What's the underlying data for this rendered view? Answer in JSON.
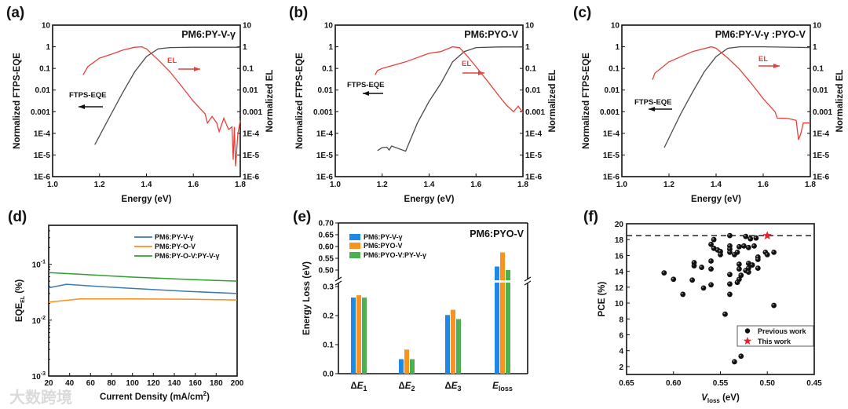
{
  "watermark": "大数跨境",
  "colors": {
    "el": "#e8413c",
    "ftps": "#4a4a4a",
    "d_blue": "#3a7ab3",
    "d_orange": "#ff8c1a",
    "d_green": "#2ca02c",
    "e_blue": "#1e88e5",
    "e_orange": "#f7931e",
    "e_green": "#4caf50",
    "star": "#e8202a"
  },
  "chart_data": [
    {
      "panel": "(a)",
      "type": "line",
      "title": "PM6:PY-V-γ",
      "xlabel": "Energy (eV)",
      "ylabel": "Normalized FTPS-EQE",
      "ylabel_right": "Normalized EL",
      "xlim": [
        1.0,
        1.8
      ],
      "ylim": [
        1e-06,
        10
      ],
      "yscale": "log",
      "xticks": [
        "1.0",
        "1.2",
        "1.4",
        "1.6",
        "1.8"
      ],
      "yticks": [
        "10",
        "1",
        "0.1",
        "0.01",
        "0.001",
        "1E-4",
        "1E-5",
        "1E-6"
      ],
      "annotations": {
        "el": "EL",
        "ftps": "FTPS-EQE"
      },
      "series": [
        {
          "name": "FTPS-EQE",
          "points": [
            [
              1.18,
              3e-05
            ],
            [
              1.25,
              0.0008
            ],
            [
              1.3,
              0.008
            ],
            [
              1.35,
              0.07
            ],
            [
              1.4,
              0.35
            ],
            [
              1.45,
              0.8
            ],
            [
              1.5,
              0.92
            ],
            [
              1.6,
              0.95
            ],
            [
              1.8,
              0.95
            ]
          ]
        },
        {
          "name": "EL",
          "points": [
            [
              1.13,
              0.05
            ],
            [
              1.15,
              0.12
            ],
            [
              1.2,
              0.3
            ],
            [
              1.25,
              0.45
            ],
            [
              1.3,
              0.7
            ],
            [
              1.35,
              0.95
            ],
            [
              1.38,
              1.0
            ],
            [
              1.4,
              0.8
            ],
            [
              1.45,
              0.25
            ],
            [
              1.5,
              0.07
            ],
            [
              1.55,
              0.015
            ],
            [
              1.6,
              0.003
            ],
            [
              1.65,
              0.0008
            ],
            [
              1.66,
              0.0003
            ],
            [
              1.68,
              0.0006
            ],
            [
              1.7,
              0.0003
            ],
            [
              1.71,
              0.00012
            ],
            [
              1.73,
              0.0005
            ],
            [
              1.75,
              0.00015
            ],
            [
              1.765,
              0.0002
            ],
            [
              1.77,
              6e-06
            ],
            [
              1.775,
              0.0002
            ],
            [
              1.78,
              3e-06
            ],
            [
              1.79,
              0.0001
            ],
            [
              1.8,
              0.0004
            ]
          ]
        }
      ]
    },
    {
      "panel": "(b)",
      "type": "line",
      "title": "PM6:PYO-V",
      "xlabel": "Energy (eV)",
      "ylabel": "Normalized FTPS-EQE",
      "ylabel_right": "Normalized EL",
      "xlim": [
        1.0,
        1.8
      ],
      "ylim": [
        1e-06,
        10
      ],
      "yscale": "log",
      "xticks": [
        "1.0",
        "1.2",
        "1.4",
        "1.6",
        "1.8"
      ],
      "yticks": [
        "10",
        "1",
        "0.1",
        "0.01",
        "0.001",
        "1E-4",
        "1E-5",
        "1E-6"
      ],
      "annotations": {
        "el": "EL",
        "ftps": "FTPS-EQE"
      },
      "series": [
        {
          "name": "FTPS-EQE",
          "points": [
            [
              1.18,
              1.6e-05
            ],
            [
              1.2,
              2.2e-05
            ],
            [
              1.22,
              2.3e-05
            ],
            [
              1.23,
              1.7e-05
            ],
            [
              1.24,
              2.6e-05
            ],
            [
              1.3,
              1.5e-05
            ],
            [
              1.35,
              0.0003
            ],
            [
              1.4,
              0.003
            ],
            [
              1.45,
              0.02
            ],
            [
              1.5,
              0.2
            ],
            [
              1.55,
              0.6
            ],
            [
              1.6,
              0.92
            ],
            [
              1.7,
              0.98
            ],
            [
              1.8,
              0.98
            ]
          ]
        },
        {
          "name": "EL",
          "points": [
            [
              1.17,
              0.05
            ],
            [
              1.18,
              0.08
            ],
            [
              1.2,
              0.1
            ],
            [
              1.3,
              0.2
            ],
            [
              1.4,
              0.5
            ],
            [
              1.45,
              0.6
            ],
            [
              1.5,
              1.0
            ],
            [
              1.53,
              0.9
            ],
            [
              1.56,
              0.4
            ],
            [
              1.6,
              0.12
            ],
            [
              1.65,
              0.025
            ],
            [
              1.7,
              0.005
            ],
            [
              1.73,
              0.002
            ],
            [
              1.76,
              0.001
            ],
            [
              1.78,
              0.0018
            ],
            [
              1.8,
              0.0009
            ]
          ]
        }
      ]
    },
    {
      "panel": "(c)",
      "type": "line",
      "title": "PM6:PY-V-γ :PYO-V",
      "xlabel": "Energy (eV)",
      "ylabel": "Normalized FTPS-EQE",
      "ylabel_right": "Normalized EL",
      "xlim": [
        1.0,
        1.8
      ],
      "ylim": [
        1e-06,
        10
      ],
      "yscale": "log",
      "xticks": [
        "1.0",
        "1.2",
        "1.4",
        "1.6",
        "1.8"
      ],
      "yticks": [
        "10",
        "1",
        "0.1",
        "0.01",
        "0.001",
        "1E-4",
        "1E-5",
        "1E-6"
      ],
      "annotations": {
        "el": "EL",
        "ftps": "FTPS-EQE"
      },
      "series": [
        {
          "name": "FTPS-EQE",
          "points": [
            [
              1.18,
              2.2e-05
            ],
            [
              1.25,
              0.0008
            ],
            [
              1.3,
              0.008
            ],
            [
              1.35,
              0.07
            ],
            [
              1.4,
              0.35
            ],
            [
              1.45,
              0.85
            ],
            [
              1.5,
              1.0
            ],
            [
              1.6,
              1.0
            ],
            [
              1.8,
              0.92
            ]
          ]
        },
        {
          "name": "EL",
          "points": [
            [
              1.13,
              0.03
            ],
            [
              1.14,
              0.06
            ],
            [
              1.2,
              0.2
            ],
            [
              1.3,
              0.6
            ],
            [
              1.38,
              1.0
            ],
            [
              1.4,
              0.85
            ],
            [
              1.45,
              0.3
            ],
            [
              1.5,
              0.09
            ],
            [
              1.55,
              0.02
            ],
            [
              1.6,
              0.004
            ],
            [
              1.65,
              0.001
            ],
            [
              1.66,
              0.0005
            ],
            [
              1.7,
              0.0005
            ],
            [
              1.74,
              0.0004
            ],
            [
              1.75,
              5e-05
            ],
            [
              1.76,
              0.0001
            ],
            [
              1.77,
              0.0003
            ],
            [
              1.8,
              0.0003
            ]
          ]
        }
      ]
    },
    {
      "panel": "(d)",
      "type": "line",
      "xlabel": "Current Density (mA/cm",
      "xlabel_sup": "2",
      "xlabel_end": ")",
      "ylabel": "EQE",
      "ylabel_sub": "EL",
      "ylabel_end": " (%)",
      "xlim": [
        20,
        200
      ],
      "ylim": [
        0.001,
        0.5
      ],
      "yscale": "log",
      "xticks": [
        "20",
        "40",
        "60",
        "80",
        "100",
        "120",
        "140",
        "160",
        "180",
        "200"
      ],
      "yticks": [
        {
          "base": "10",
          "exp": "-1"
        },
        {
          "base": "10",
          "exp": "-2"
        },
        {
          "base": "10",
          "exp": "-3"
        }
      ],
      "legend_position": "top-right",
      "series": [
        {
          "name": "PM6:PY-V-γ",
          "points": [
            [
              20,
              0.038
            ],
            [
              37,
              0.044
            ],
            [
              60,
              0.041
            ],
            [
              100,
              0.037
            ],
            [
              150,
              0.033
            ],
            [
              200,
              0.03
            ]
          ]
        },
        {
          "name": "PM6:PY-O-V",
          "points": [
            [
              20,
              0.021
            ],
            [
              50,
              0.024
            ],
            [
              100,
              0.024
            ],
            [
              150,
              0.0238
            ],
            [
              200,
              0.023
            ]
          ]
        },
        {
          "name": "PM6:PY-O-V:PY-V-γ",
          "points": [
            [
              20,
              0.071
            ],
            [
              40,
              0.068
            ],
            [
              100,
              0.059
            ],
            [
              150,
              0.054
            ],
            [
              200,
              0.05
            ]
          ]
        }
      ]
    },
    {
      "panel": "(e)",
      "type": "bar",
      "title": "PM6:PYO-V",
      "ylabel": "Energy Loss (eV)",
      "ylim_lower": [
        0,
        0.3
      ],
      "ylim_upper": [
        0.46,
        0.7
      ],
      "yticks_upper": [
        "0.70",
        "0.65",
        "0.60",
        "0.55",
        "0.50"
      ],
      "yticks_lower": [
        "0.3",
        "0.2",
        "0.1",
        "0.0"
      ],
      "categories": [
        {
          "delta": "Δ",
          "main": "E",
          "sub": "1"
        },
        {
          "delta": "Δ",
          "main": "E",
          "sub": "2"
        },
        {
          "delta": "Δ",
          "main": "E",
          "sub": "3"
        },
        {
          "delta": "",
          "main": "E",
          "sub": "loss"
        }
      ],
      "legend_position": "top-left",
      "series": [
        {
          "name": "PM6:PY-V-γ",
          "values": [
            0.262,
            0.05,
            0.202,
            0.515
          ]
        },
        {
          "name": "PM6:PYO-V",
          "values": [
            0.27,
            0.083,
            0.22,
            0.575
          ]
        },
        {
          "name": "PM6:PYO-V:PY-V-γ",
          "values": [
            0.262,
            0.05,
            0.188,
            0.5
          ]
        }
      ]
    },
    {
      "panel": "(f)",
      "type": "scatter",
      "xlabel": "V",
      "xlabel_sub": "loss",
      "xlabel_end": " (eV)",
      "ylabel": "PCE (%)",
      "xlim": [
        0.65,
        0.45
      ],
      "ylim": [
        1,
        20
      ],
      "xticks": [
        "0.65",
        "0.60",
        "0.55",
        "0.50",
        "0.45"
      ],
      "yticks": [
        "20",
        "18",
        "16",
        "14",
        "12",
        "10",
        "8",
        "6",
        "4",
        "2"
      ],
      "reference_line_y": 18.5,
      "legend_position": "bottom-right",
      "series": [
        {
          "name": "Previous work",
          "points": [
            [
              0.61,
              13.8
            ],
            [
              0.6,
              13.0
            ],
            [
              0.59,
              11.1
            ],
            [
              0.58,
              12.9
            ],
            [
              0.578,
              14.7
            ],
            [
              0.578,
              15.1
            ],
            [
              0.57,
              14.5
            ],
            [
              0.568,
              11.9
            ],
            [
              0.56,
              17.4
            ],
            [
              0.56,
              15.3
            ],
            [
              0.56,
              14.3
            ],
            [
              0.56,
              12.3
            ],
            [
              0.557,
              18.0
            ],
            [
              0.557,
              16.9
            ],
            [
              0.553,
              16.7
            ],
            [
              0.55,
              16.5
            ],
            [
              0.55,
              16.1
            ],
            [
              0.545,
              8.6
            ],
            [
              0.54,
              18.5
            ],
            [
              0.54,
              17.2
            ],
            [
              0.54,
              16.8
            ],
            [
              0.54,
              16.4
            ],
            [
              0.54,
              13.6
            ],
            [
              0.54,
              12.4
            ],
            [
              0.54,
              11.1
            ],
            [
              0.535,
              2.6
            ],
            [
              0.535,
              16.1
            ],
            [
              0.532,
              16.4
            ],
            [
              0.532,
              12.6
            ],
            [
              0.53,
              17.1
            ],
            [
              0.53,
              14.9
            ],
            [
              0.53,
              14.3
            ],
            [
              0.53,
              13.0
            ],
            [
              0.528,
              3.3
            ],
            [
              0.528,
              13.5
            ],
            [
              0.525,
              17.2
            ],
            [
              0.523,
              18.4
            ],
            [
              0.523,
              14.1
            ],
            [
              0.52,
              15.0
            ],
            [
              0.52,
              14.4
            ],
            [
              0.52,
              13.9
            ],
            [
              0.52,
              17.0
            ],
            [
              0.518,
              18.1
            ],
            [
              0.516,
              14.8
            ],
            [
              0.514,
              17.2
            ],
            [
              0.512,
              18.2
            ],
            [
              0.51,
              15.8
            ],
            [
              0.51,
              15.5
            ],
            [
              0.51,
              14.4
            ],
            [
              0.502,
              16.4
            ],
            [
              0.5,
              16.1
            ],
            [
              0.493,
              16.4
            ],
            [
              0.493,
              9.7
            ]
          ]
        },
        {
          "name": "This work",
          "points": [
            [
              0.5,
              18.5
            ]
          ]
        }
      ]
    }
  ]
}
